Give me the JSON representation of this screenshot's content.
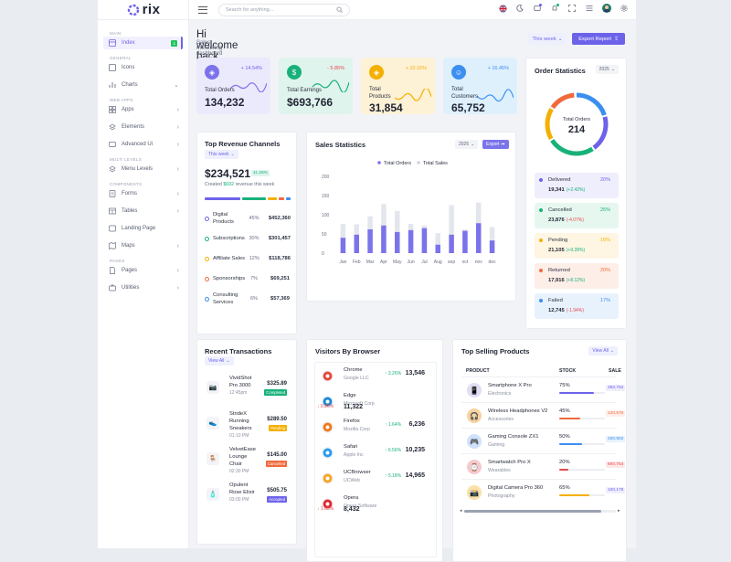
{
  "brand": {
    "name": "rix"
  },
  "search": {
    "placeholder": "Search for anything..."
  },
  "sidebar": {
    "sections": [
      "MAIN",
      "GENERAL",
      "WEB APPS",
      "MULTI LEVELS",
      "COMPONENTS",
      "PAGES"
    ],
    "items": [
      {
        "label": "Index",
        "badge": "1"
      },
      {
        "label": "Icons"
      },
      {
        "label": "Charts"
      },
      {
        "label": "Apps"
      },
      {
        "label": "Elements"
      },
      {
        "label": "Advanced Ui"
      },
      {
        "label": "Menu Levels"
      },
      {
        "label": "Forms"
      },
      {
        "label": "Tables"
      },
      {
        "label": "Landing Page"
      },
      {
        "label": "Maps"
      },
      {
        "label": "Pages"
      },
      {
        "label": "Utilities"
      }
    ]
  },
  "header": {
    "welcome": "Hi welcome back, Petey!",
    "subtitle": "Sales monitoring dashboard template.",
    "period": "This week",
    "export": "Export Report"
  },
  "stats": [
    {
      "label": "Total Orders",
      "value": "134,232",
      "change": "+ 14.54%",
      "color": "#6d63ea"
    },
    {
      "label": "Total Earnings",
      "value": "$693,766",
      "change": "- 5.85%",
      "color": "#18b17a"
    },
    {
      "label": "Total Products",
      "value": "31,854",
      "change": "+ 10.15%",
      "color": "#f4b000"
    },
    {
      "label": "Total Customers",
      "value": "65,752",
      "change": "+ 16.45%",
      "color": "#3b8ff0"
    }
  ],
  "order_stats": {
    "title": "Order Statistics",
    "year": "2025",
    "center_label": "Total Orders",
    "center_value": "214",
    "items": [
      {
        "label": "Delivered",
        "value": "19,341",
        "change": "(+2.42%)",
        "pct": "20%",
        "color": "#6d63ea",
        "bg": "#efeefd",
        "chcolor": "#18b17a"
      },
      {
        "label": "Cancelled",
        "value": "23,876",
        "change": "(-4.07%)",
        "pct": "25%",
        "color": "#18b17a",
        "bg": "#e6f7ef",
        "chcolor": "#e5484d"
      },
      {
        "label": "Pending",
        "value": "21,105",
        "change": "(+9.28%)",
        "pct": "16%",
        "color": "#f4b000",
        "bg": "#fef6e3",
        "chcolor": "#18b17a"
      },
      {
        "label": "Returned",
        "value": "17,916",
        "change": "(+8.12%)",
        "pct": "20%",
        "color": "#f06a3c",
        "bg": "#fdeee8",
        "chcolor": "#18b17a"
      },
      {
        "label": "Failed",
        "value": "12,745",
        "change": "(-1.94%)",
        "pct": "17%",
        "color": "#3b8ff0",
        "bg": "#e8f2fd",
        "chcolor": "#e5484d"
      }
    ]
  },
  "revenue": {
    "title": "Top Revenue Channels",
    "period": "This week",
    "total": "$234,521",
    "badge": "11.25%",
    "note_pre": "Created",
    "note_amt": "$692",
    "note_post": "revenue this week",
    "channels": [
      {
        "name": "Digital Products",
        "pct": "45%",
        "amount": "$452,360",
        "color": "#6d63ea"
      },
      {
        "name": "Subscriptions",
        "pct": "30%",
        "amount": "$301,457",
        "color": "#18b17a"
      },
      {
        "name": "Affiliate Sales",
        "pct": "12%",
        "amount": "$118,786",
        "color": "#f4b000"
      },
      {
        "name": "Sponsorships",
        "pct": "7%",
        "amount": "$69,251",
        "color": "#f06a3c"
      },
      {
        "name": "Consulting Services",
        "pct": "6%",
        "amount": "$57,369",
        "color": "#3b8ff0"
      }
    ]
  },
  "sales_stats": {
    "title": "Sales Statistics",
    "year": "2025",
    "export": "Export"
  },
  "chart_data": {
    "type": "bar",
    "title": "Sales Statistics",
    "categories": [
      "Jan",
      "Feb",
      "Mar",
      "Apr",
      "May",
      "Jun",
      "Jul",
      "Aug",
      "sep",
      "oct",
      "nov",
      "dec"
    ],
    "series": [
      {
        "name": "Total Orders",
        "values": [
          40,
          48,
          62,
          72,
          55,
          60,
          65,
          22,
          48,
          58,
          78,
          33
        ],
        "color": "#7b73ea"
      },
      {
        "name": "Total Sales",
        "values": [
          76,
          75,
          96,
          128,
          110,
          76,
          72,
          52,
          125,
          62,
          132,
          68
        ],
        "color": "#e4e6ee"
      }
    ],
    "ylim": [
      0,
      200
    ],
    "yticks": [
      "200",
      "150",
      "100",
      "50",
      "0"
    ]
  },
  "transactions": {
    "title": "Recent Transactions",
    "view": "View All",
    "rows": [
      {
        "name": "VividShot Pro 3000",
        "time": "12:45pm",
        "amount": "$325.89",
        "status": "Completed",
        "scolor": "#18b17a",
        "icon": "📷"
      },
      {
        "name": "StrideX Running Sneakers",
        "time": "01:10 PM",
        "amount": "$289.50",
        "status": "Pending",
        "scolor": "#f4b000",
        "icon": "👟"
      },
      {
        "name": "VelvetEase Lounge Chair",
        "time": "02:30 PM",
        "amount": "$145.00",
        "status": "Cancelled",
        "scolor": "#f06a3c",
        "icon": "🪑"
      },
      {
        "name": "Opulent Rose Elixir",
        "time": "03:00 PM",
        "amount": "$505.75",
        "status": "Accepted",
        "scolor": "#6d63ea",
        "icon": "🧴"
      }
    ]
  },
  "browsers": {
    "title": "Visitors By Browser",
    "rows": [
      {
        "name": "Chrome",
        "company": "Google LLC",
        "change": "↑ 3.26%",
        "up": true,
        "value": "13,546",
        "color": "#e6473c"
      },
      {
        "name": "Edge",
        "company": "Microsoft Corp",
        "change": "↓ 0.96%",
        "up": false,
        "value": "11,322",
        "color": "#1a8ad6"
      },
      {
        "name": "Firefox",
        "company": "Mozilla Corp",
        "change": "↑ 1.64%",
        "up": true,
        "value": "6,236",
        "color": "#f07a1a"
      },
      {
        "name": "Safari",
        "company": "Apple Inc",
        "change": "↑ 6.56%",
        "up": true,
        "value": "10,235",
        "color": "#2a9bf0"
      },
      {
        "name": "UCBrowser",
        "company": "UCWeb",
        "change": "↑ 5.18%",
        "up": true,
        "value": "14,965",
        "color": "#f5a623"
      },
      {
        "name": "Opera",
        "company": "Opera Software",
        "change": "↓ 1.65%",
        "up": false,
        "value": "8,432",
        "color": "#e0282e"
      }
    ]
  },
  "top_products": {
    "title": "Top Selling Products",
    "view": "View All",
    "columns": [
      "PRODUCT",
      "STOCK",
      "SALE"
    ],
    "rows": [
      {
        "name": "Smartphone X Pro",
        "category": "Electronics",
        "stock": "75%",
        "stock_value": 0.75,
        "bar": "#6d63ea",
        "sale": "350,762",
        "sbg": "#efeefd",
        "sc": "#6d63ea",
        "icon": "📱",
        "ibg": "#e3dcf5"
      },
      {
        "name": "Wireless Headphones V2",
        "category": "Accessories",
        "stock": "45%",
        "stock_value": 0.45,
        "bar": "#f06a3c",
        "sale": "120,576",
        "sbg": "#fdeee8",
        "sc": "#f06a3c",
        "icon": "🎧",
        "ibg": "#f7d3a0"
      },
      {
        "name": "Gaming Console ZX1",
        "category": "Gaming",
        "stock": "50%",
        "stock_value": 0.5,
        "bar": "#3b8ff0",
        "sale": "450,902",
        "sbg": "#e8f2fd",
        "sc": "#3b8ff0",
        "icon": "🎮",
        "ibg": "#cfe1fb"
      },
      {
        "name": "Smartwatch Pro X",
        "category": "Wearables",
        "stock": "20%",
        "stock_value": 0.2,
        "bar": "#e5484d",
        "sale": "800,754",
        "sbg": "#fde8e8",
        "sc": "#e5484d",
        "icon": "⌚",
        "ibg": "#f6c9cc"
      },
      {
        "name": "Digital Camera Pro 360",
        "category": "Photography",
        "stock": "65%",
        "stock_value": 0.65,
        "bar": "#f4b000",
        "sale": "100,178",
        "sbg": "#efeefd",
        "sc": "#6d63ea",
        "icon": "📸",
        "ibg": "#f9e1a8"
      }
    ]
  }
}
